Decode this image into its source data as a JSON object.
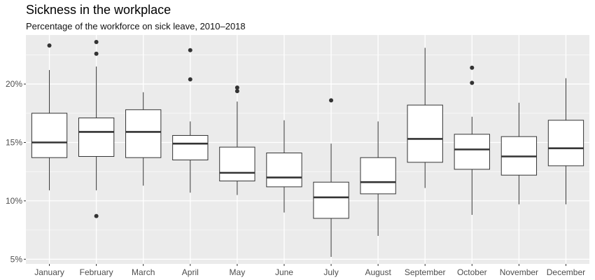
{
  "chart_data": {
    "type": "boxplot",
    "title": "Sickness in the workplace",
    "subtitle": "Percentage of the workforce on sick leave, 2010–2018",
    "xlabel": "",
    "ylabel": "",
    "ylim": [
      4.6,
      24.2
    ],
    "yticks": [
      5,
      10,
      15,
      20
    ],
    "ytick_labels": [
      "5%",
      "10%",
      "15%",
      "20%"
    ],
    "grid": true,
    "colors": {
      "panel": "#ebebeb",
      "grid": "#ffffff",
      "box_fill": "#ffffff",
      "box_line": "#333333",
      "text": "#4d4d4d"
    },
    "categories": [
      "January",
      "February",
      "March",
      "April",
      "May",
      "June",
      "July",
      "August",
      "September",
      "October",
      "November",
      "December"
    ],
    "boxes": [
      {
        "min": 10.9,
        "q1": 13.7,
        "median": 15.0,
        "q3": 17.5,
        "max": 21.2,
        "outliers": [
          23.3
        ]
      },
      {
        "min": 10.9,
        "q1": 13.8,
        "median": 15.9,
        "q3": 17.1,
        "max": 21.5,
        "outliers": [
          23.6,
          22.6,
          8.7
        ]
      },
      {
        "min": 11.3,
        "q1": 13.7,
        "median": 15.9,
        "q3": 17.8,
        "max": 19.3,
        "outliers": []
      },
      {
        "min": 10.7,
        "q1": 13.5,
        "median": 14.9,
        "q3": 15.6,
        "max": 16.8,
        "outliers": [
          22.9,
          20.4
        ]
      },
      {
        "min": 10.5,
        "q1": 11.7,
        "median": 12.4,
        "q3": 14.6,
        "max": 18.5,
        "outliers": [
          19.7,
          19.4
        ]
      },
      {
        "min": 9.0,
        "q1": 11.2,
        "median": 12.0,
        "q3": 14.1,
        "max": 16.9,
        "outliers": []
      },
      {
        "min": 5.2,
        "q1": 8.5,
        "median": 10.3,
        "q3": 11.6,
        "max": 14.9,
        "outliers": [
          18.6
        ]
      },
      {
        "min": 7.0,
        "q1": 10.6,
        "median": 11.6,
        "q3": 13.7,
        "max": 16.8,
        "outliers": []
      },
      {
        "min": 11.1,
        "q1": 13.3,
        "median": 15.3,
        "q3": 18.2,
        "max": 23.1,
        "outliers": []
      },
      {
        "min": 8.8,
        "q1": 12.7,
        "median": 14.4,
        "q3": 15.7,
        "max": 17.2,
        "outliers": [
          21.4,
          20.1
        ]
      },
      {
        "min": 9.7,
        "q1": 12.2,
        "median": 13.8,
        "q3": 15.5,
        "max": 18.4,
        "outliers": []
      },
      {
        "min": 9.7,
        "q1": 13.0,
        "median": 14.5,
        "q3": 16.9,
        "max": 20.5,
        "outliers": []
      }
    ]
  }
}
